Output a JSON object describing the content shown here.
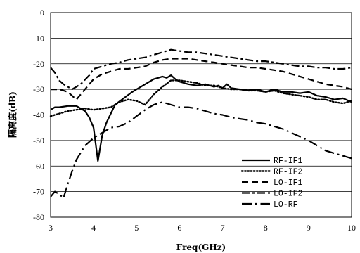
{
  "chart_data": {
    "type": "line",
    "xlabel": "Freq(GHz)",
    "ylabel": "隔离度(dB)",
    "xlim": [
      3,
      10
    ],
    "ylim": [
      -80,
      0
    ],
    "x_ticks": [
      3,
      4,
      5,
      6,
      7,
      8,
      9,
      10
    ],
    "y_ticks": [
      0,
      -10,
      -20,
      -30,
      -40,
      -50,
      -60,
      -70,
      -80
    ],
    "grid": "horizontal",
    "legend_position": "bottom-right",
    "series": [
      {
        "name": "RF-IF1",
        "style": "solid",
        "color": "#000000",
        "x": [
          3.0,
          3.1,
          3.2,
          3.4,
          3.6,
          3.8,
          3.9,
          4.0,
          4.1,
          4.2,
          4.3,
          4.5,
          4.7,
          4.9,
          5.0,
          5.2,
          5.4,
          5.5,
          5.6,
          5.7,
          5.8,
          5.9,
          6.0,
          6.2,
          6.4,
          6.6,
          6.8,
          6.9,
          7.0,
          7.1,
          7.2,
          7.4,
          7.6,
          7.8,
          8.0,
          8.2,
          8.4,
          8.6,
          8.8,
          9.0,
          9.2,
          9.4,
          9.6,
          9.8,
          10.0
        ],
        "values": [
          -38,
          -37,
          -37,
          -36.5,
          -36.5,
          -38.5,
          -41,
          -45,
          -58,
          -48,
          -43,
          -36,
          -33.5,
          -31,
          -30,
          -28,
          -26,
          -25.5,
          -25,
          -25.5,
          -24.5,
          -26,
          -27,
          -28,
          -28.5,
          -28,
          -29,
          -28.5,
          -29.5,
          -28,
          -29.5,
          -30,
          -30.5,
          -30,
          -31,
          -30,
          -31,
          -31,
          -31.5,
          -31,
          -32.5,
          -33,
          -34,
          -33.5,
          -35
        ]
      },
      {
        "name": "RF-IF2",
        "style": "dotted",
        "color": "#000000",
        "x": [
          3.0,
          3.2,
          3.4,
          3.6,
          3.8,
          4.0,
          4.2,
          4.4,
          4.6,
          4.8,
          5.0,
          5.2,
          5.4,
          5.6,
          5.8,
          6.0,
          6.2,
          6.4,
          6.6,
          6.8,
          7.0,
          7.2,
          7.4,
          7.6,
          7.8,
          8.0,
          8.2,
          8.4,
          8.6,
          8.8,
          9.0,
          9.2,
          9.4,
          9.6,
          9.8,
          10.0
        ],
        "values": [
          -40.5,
          -39.5,
          -38.5,
          -38,
          -37.5,
          -38,
          -37.5,
          -37,
          -35,
          -34,
          -34.5,
          -36,
          -32,
          -29,
          -26.5,
          -26.5,
          -27,
          -27.5,
          -28.5,
          -28.5,
          -29.5,
          -30,
          -30,
          -30.5,
          -30.5,
          -31,
          -30.5,
          -31.5,
          -32,
          -32.5,
          -33,
          -34,
          -34,
          -35,
          -35.5,
          -34.5
        ]
      },
      {
        "name": "LO-IF1",
        "style": "dashed",
        "color": "#000000",
        "x": [
          3.0,
          3.2,
          3.4,
          3.6,
          3.8,
          4.0,
          4.2,
          4.4,
          4.6,
          4.8,
          5.0,
          5.2,
          5.4,
          5.6,
          5.8,
          6.0,
          6.2,
          6.4,
          6.6,
          6.8,
          7.0,
          7.2,
          7.4,
          7.6,
          7.8,
          8.0,
          8.2,
          8.4,
          8.6,
          8.8,
          9.0,
          9.2,
          9.4,
          9.6,
          9.8,
          10.0
        ],
        "values": [
          -30,
          -30,
          -31,
          -34,
          -30,
          -26,
          -24,
          -23,
          -22,
          -22,
          -21.5,
          -21,
          -19.5,
          -18.5,
          -18,
          -18,
          -18,
          -18.5,
          -19,
          -19.5,
          -20,
          -20.5,
          -21,
          -21.5,
          -21.5,
          -22,
          -22.5,
          -23,
          -24,
          -25,
          -26,
          -27,
          -28,
          -28.5,
          -29,
          -30
        ]
      },
      {
        "name": "LO-IF2",
        "style": "dash-dot",
        "color": "#000000",
        "x": [
          3.0,
          3.1,
          3.2,
          3.3,
          3.5,
          3.7,
          3.9,
          4.0,
          4.2,
          4.4,
          4.6,
          4.8,
          5.0,
          5.2,
          5.4,
          5.6,
          5.8,
          6.0,
          6.2,
          6.4,
          6.6,
          6.8,
          7.0,
          7.2,
          7.4,
          7.6,
          7.8,
          8.0,
          8.2,
          8.4,
          8.6,
          8.8,
          9.0,
          9.2,
          9.4,
          9.6,
          9.8,
          10.0
        ],
        "values": [
          -21.5,
          -23.5,
          -26.5,
          -28,
          -30,
          -28,
          -24.5,
          -22,
          -21,
          -20,
          -19.5,
          -18.5,
          -18,
          -17.5,
          -16.5,
          -15.5,
          -14.5,
          -15,
          -15.5,
          -15.5,
          -16,
          -16.5,
          -17,
          -17.5,
          -18,
          -18.5,
          -19,
          -19,
          -19.5,
          -20,
          -20.5,
          -21,
          -21,
          -21.5,
          -21.5,
          -22,
          -22,
          -21.5
        ]
      },
      {
        "name": "LO-RF",
        "style": "long-dash-dot",
        "color": "#000000",
        "x": [
          3.0,
          3.1,
          3.2,
          3.3,
          3.4,
          3.5,
          3.6,
          3.8,
          4.0,
          4.2,
          4.4,
          4.6,
          4.8,
          5.0,
          5.2,
          5.4,
          5.6,
          5.8,
          6.0,
          6.2,
          6.4,
          6.6,
          6.8,
          7.0,
          7.2,
          7.4,
          7.6,
          7.8,
          8.0,
          8.2,
          8.4,
          8.6,
          8.8,
          9.0,
          9.2,
          9.4,
          9.6,
          9.8,
          10.0
        ],
        "values": [
          -72,
          -70,
          -71,
          -72.5,
          -67,
          -62,
          -57.5,
          -52,
          -49,
          -47,
          -45,
          -44.5,
          -43,
          -40.5,
          -38,
          -36,
          -35,
          -36,
          -37,
          -37,
          -37.5,
          -38.5,
          -39.5,
          -40,
          -41,
          -41.5,
          -42,
          -43,
          -43.5,
          -44.5,
          -45.5,
          -47,
          -48.5,
          -50,
          -52,
          -54,
          -55,
          -56,
          -57
        ]
      }
    ]
  }
}
